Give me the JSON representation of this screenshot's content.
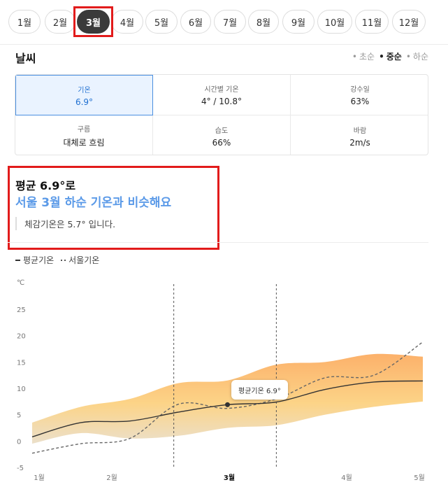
{
  "months": {
    "items": [
      "1월",
      "2월",
      "3월",
      "4월",
      "5월",
      "6월",
      "7월",
      "8월",
      "9월",
      "10월",
      "11월",
      "12월"
    ],
    "selected_index": 2
  },
  "weather": {
    "title": "날씨",
    "periods": [
      "초순",
      "중순",
      "하순"
    ],
    "selected_period": "중순",
    "stats": [
      {
        "label": "기온",
        "value": "6.9°"
      },
      {
        "label": "시간별 기온",
        "value": "4° / 10.8°"
      },
      {
        "label": "강수일",
        "value": "63%"
      },
      {
        "label": "구름",
        "value": "대체로 흐림"
      },
      {
        "label": "습도",
        "value": "66%"
      },
      {
        "label": "바람",
        "value": "2m/s"
      }
    ]
  },
  "summary": {
    "line1": "평균 6.9°로",
    "line2": "서울 3월 하순 기온과 비슷해요",
    "note": "체감기온은 5.7° 입니다."
  },
  "legend": {
    "avg": "평균기온",
    "seoul": "서울기온"
  },
  "tooltip": "평균기온 6.9°",
  "chart_data": {
    "type": "line",
    "ylabel": "℃",
    "ylim": [
      -5,
      25
    ],
    "yticks": [
      25,
      20,
      15,
      10,
      5,
      0,
      -5
    ],
    "xticks": [
      "1월",
      "2월",
      "3월",
      "4월",
      "5월"
    ],
    "highlight_tick": "3월",
    "series": [
      {
        "name": "평균기온",
        "x": [
          1.0,
          1.5,
          2.0,
          2.5,
          3.0,
          3.5,
          4.0,
          4.5,
          5.0
        ],
        "values": [
          0.8,
          3.5,
          3.8,
          5.5,
          6.9,
          7.4,
          9.8,
          11.2,
          11.4
        ]
      },
      {
        "name": "서울기온",
        "x": [
          1.0,
          1.5,
          2.0,
          2.5,
          3.0,
          3.5,
          4.0,
          4.5,
          5.0
        ],
        "values": [
          -2.3,
          -0.5,
          0.5,
          7.0,
          6.2,
          8.0,
          12.0,
          12.5,
          18.8
        ]
      }
    ],
    "band_upper": [
      3.5,
      6.5,
      8.0,
      11.0,
      11.5,
      14.5,
      15.0,
      16.5,
      16.0
    ],
    "band_lower": [
      -0.5,
      1.5,
      0.5,
      1.0,
      2.5,
      3.0,
      5.0,
      6.5,
      7.5
    ],
    "marker": {
      "x": 3.0,
      "value": 6.9
    }
  }
}
